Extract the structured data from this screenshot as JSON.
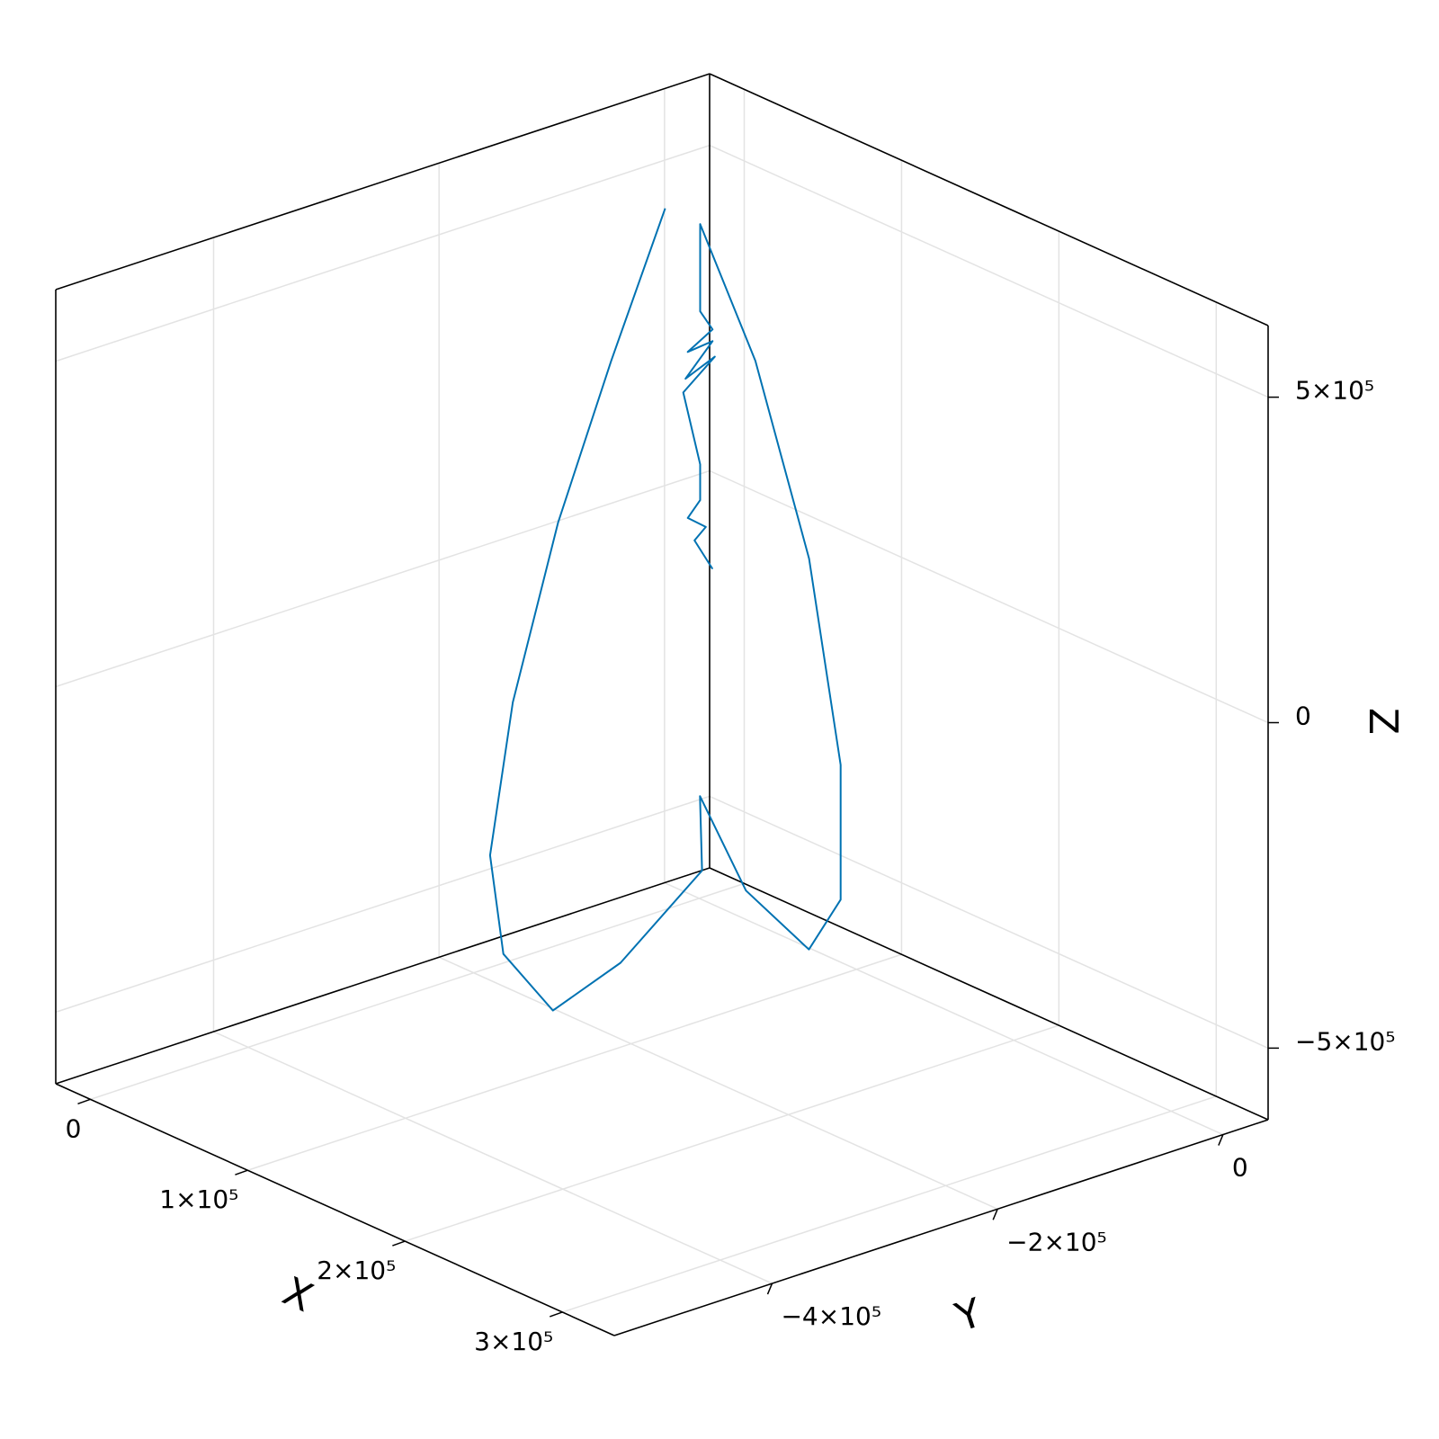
{
  "chart_data": {
    "type": "line3d",
    "xlabel": "X",
    "ylabel": "Y",
    "zlabel": "Z",
    "color": "#0072b2",
    "grid": true,
    "xlim": [
      -22000,
      333000
    ],
    "ylim": [
      -540000,
      40000
    ],
    "zlim": [
      -610000,
      610000
    ],
    "xticks": [
      0,
      {
        "value": 100000,
        "label": "1×10⁵"
      },
      {
        "value": 200000,
        "label": "2×10⁵"
      },
      {
        "value": 300000,
        "label": "3×10⁵"
      }
    ],
    "yticks": [
      {
        "value": -400000,
        "label": "−4×10⁵"
      },
      {
        "value": -200000,
        "label": "−2×10⁵"
      },
      0
    ],
    "zticks": [
      {
        "value": -500000,
        "label": "−5×10⁵"
      },
      0,
      {
        "value": 500000,
        "label": "5×10⁵"
      }
    ],
    "x": [
      20000,
      20000,
      20000,
      60000,
      100000,
      150000,
      150000,
      150000,
      100000,
      60000,
      100000,
      150000,
      100000,
      100000,
      100000,
      20000,
      20000,
      20000,
      20000,
      20000,
      20000,
      20000,
      20000,
      20000,
      20000,
      20000,
      20000,
      20000,
      20000,
      20000
    ],
    "y": [
      -58000,
      -106000,
      -153000,
      -249000,
      -325000,
      -383000,
      -339000,
      -279000,
      -137000,
      -83000,
      -98000,
      -112000,
      -14000,
      -14000,
      -42000,
      22000,
      -27000,
      -27000,
      -16000,
      -38000,
      -16000,
      -40000,
      -14000,
      -42000,
      -27000,
      -27000,
      -38000,
      -22000,
      -32000,
      -16000
    ],
    "z": [
      505000,
      298000,
      77000,
      -101000,
      -249000,
      -313000,
      -425000,
      -386000,
      -380000,
      -340000,
      -433000,
      -461000,
      -495000,
      -288000,
      45000,
      225000,
      463000,
      329000,
      295000,
      273000,
      277000,
      233000,
      252000,
      213000,
      94000,
      39000,
      18000,
      -5000,
      -20000,
      -73000
    ]
  }
}
